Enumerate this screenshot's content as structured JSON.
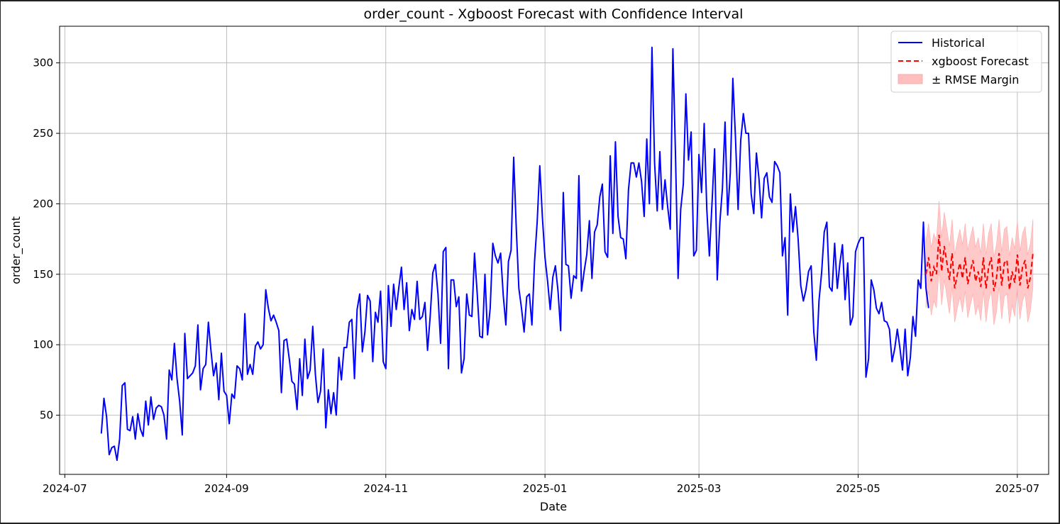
{
  "chart_data": {
    "type": "line",
    "title": "order_count - Xgboost Forecast with Confidence Interval",
    "xlabel": "Date",
    "ylabel": "order_count",
    "x_ticks": [
      "2024-07",
      "2024-09",
      "2024-11",
      "2025-01",
      "2025-03",
      "2025-05",
      "2025-07"
    ],
    "y_ticks": [
      50,
      100,
      150,
      200,
      250,
      300
    ],
    "xlim": [
      "2024-06-29",
      "2025-07-13"
    ],
    "ylim": [
      8,
      326
    ],
    "grid": true,
    "legend_position": "top-right",
    "legend": [
      "Historical",
      "xgboost Forecast",
      "± RMSE Margin"
    ],
    "colors": {
      "historical": "#0000ff",
      "forecast": "#ff0000",
      "band": "#ffbfbf"
    },
    "historical": {
      "name": "Historical",
      "start_date": "2024-07-15",
      "values": [
        37,
        62,
        49,
        22,
        27,
        28,
        18,
        33,
        71,
        73,
        40,
        39,
        49,
        33,
        51,
        40,
        35,
        60,
        43,
        63,
        47,
        55,
        57,
        56,
        50,
        33,
        82,
        75,
        101,
        76,
        60,
        36,
        108,
        76,
        78,
        80,
        85,
        114,
        68,
        83,
        86,
        116,
        96,
        78,
        87,
        61,
        94,
        67,
        64,
        44,
        65,
        62,
        85,
        83,
        75,
        122,
        79,
        86,
        79,
        99,
        102,
        97,
        100,
        139,
        126,
        117,
        121,
        116,
        110,
        66,
        103,
        104,
        90,
        74,
        72,
        54,
        90,
        64,
        104,
        76,
        82,
        113,
        79,
        59,
        67,
        97,
        41,
        68,
        51,
        66,
        50,
        91,
        75,
        98,
        98,
        116,
        118,
        76,
        125,
        136,
        95,
        109,
        135,
        131,
        88,
        123,
        116,
        138,
        88,
        83,
        142,
        113,
        143,
        125,
        141,
        155,
        125,
        144,
        110,
        125,
        118,
        145,
        118,
        120,
        130,
        96,
        120,
        151,
        157,
        136,
        101,
        166,
        169,
        83,
        146,
        146,
        127,
        134,
        80,
        90,
        136,
        121,
        120,
        165,
        137,
        106,
        105,
        150,
        107,
        126,
        172,
        163,
        158,
        165,
        135,
        114,
        159,
        167,
        233,
        182,
        140,
        126,
        109,
        134,
        136,
        114,
        159,
        187,
        227,
        191,
        162,
        145,
        125,
        148,
        156,
        138,
        110,
        208,
        157,
        156,
        133,
        149,
        147,
        220,
        138,
        152,
        164,
        188,
        147,
        180,
        185,
        205,
        214,
        166,
        162,
        234,
        179,
        244,
        191,
        176,
        175,
        161,
        210,
        229,
        229,
        219,
        229,
        216,
        191,
        246,
        200,
        311,
        229,
        195,
        237,
        196,
        217,
        198,
        182,
        310,
        236,
        147,
        196,
        214,
        278,
        231,
        251,
        163,
        167,
        235,
        208,
        257,
        196,
        163,
        200,
        239,
        146,
        187,
        211,
        258,
        192,
        222,
        289,
        247,
        196,
        245,
        264,
        250,
        250,
        207,
        193,
        236,
        218,
        190,
        218,
        222,
        205,
        201,
        230,
        227,
        222,
        163,
        176,
        121,
        207,
        180,
        198,
        175,
        142,
        131,
        139,
        152,
        156,
        109,
        89,
        131,
        151,
        180,
        187,
        141,
        138,
        172,
        140,
        158,
        171,
        132,
        158,
        114,
        120,
        166,
        172,
        176,
        176,
        77,
        90,
        146,
        139,
        126,
        122,
        130,
        117,
        116,
        111,
        88,
        97,
        111,
        98,
        82,
        111,
        78,
        91,
        120,
        106,
        146,
        140,
        187,
        140,
        126
      ]
    },
    "forecast": {
      "name": "xgboost Forecast",
      "start_date": "2025-05-27",
      "values": [
        150,
        162,
        145,
        155,
        150,
        178,
        152,
        170,
        158,
        146,
        165,
        140,
        150,
        158,
        147,
        162,
        143,
        152,
        160,
        145,
        152,
        141,
        162,
        140,
        155,
        162,
        138,
        147,
        165,
        142,
        158,
        160,
        139,
        152,
        144,
        164,
        142,
        155,
        160,
        140,
        148,
        165
      ]
    },
    "rmse_margin": 24
  }
}
